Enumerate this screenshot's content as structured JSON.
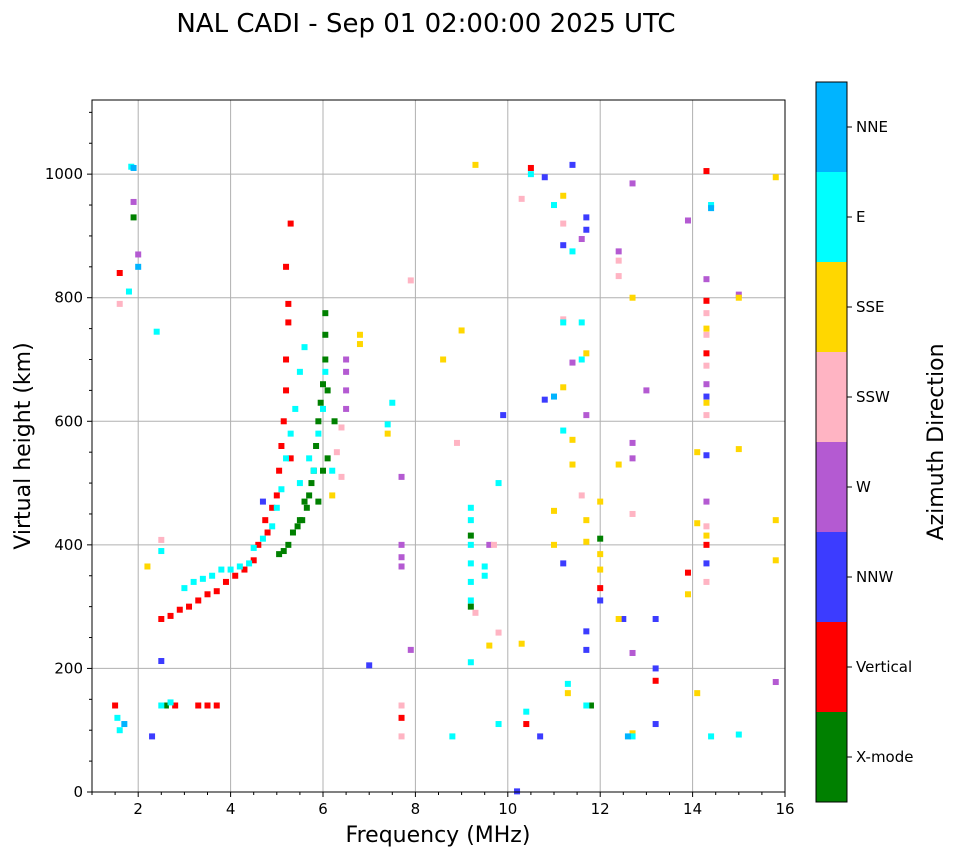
{
  "chart_data": {
    "type": "scatter",
    "title": "NAL CADI - Sep 01 02:00:00 2025 UTC",
    "xlabel": "Frequency (MHz)",
    "ylabel": "Virtual height (km)",
    "xlim": [
      1,
      16
    ],
    "ylim": [
      0,
      1120
    ],
    "xticks": [
      2,
      4,
      6,
      8,
      10,
      12,
      14,
      16
    ],
    "yticks": [
      0,
      200,
      400,
      600,
      800,
      1000
    ],
    "grid": true,
    "colorbar": {
      "label": "Azimuth Direction",
      "categories": [
        "X-mode",
        "Vertical",
        "NNW",
        "W",
        "SSW",
        "SSE",
        "E",
        "NNE"
      ],
      "colors": [
        "#008000",
        "#ff0000",
        "#3c3cff",
        "#b45ad2",
        "#ffb4c3",
        "#ffd700",
        "#00ffff",
        "#00b4ff"
      ]
    },
    "series": [
      {
        "name": "X-mode",
        "points": [
          [
            5.05,
            385
          ],
          [
            5.15,
            390
          ],
          [
            5.25,
            400
          ],
          [
            5.45,
            430
          ],
          [
            5.55,
            440
          ],
          [
            5.6,
            470
          ],
          [
            5.7,
            480
          ],
          [
            5.75,
            500
          ],
          [
            5.8,
            520
          ],
          [
            5.85,
            560
          ],
          [
            5.9,
            600
          ],
          [
            5.95,
            630
          ],
          [
            6.0,
            660
          ],
          [
            6.05,
            700
          ],
          [
            6.05,
            740
          ],
          [
            6.05,
            775
          ],
          [
            5.5,
            440
          ],
          [
            5.65,
            460
          ],
          [
            6.0,
            520
          ],
          [
            6.1,
            540
          ],
          [
            6.25,
            600
          ],
          [
            2.6,
            140
          ],
          [
            9.2,
            415
          ],
          [
            9.2,
            300
          ],
          [
            11.8,
            140
          ],
          [
            12.0,
            410
          ],
          [
            5.35,
            420
          ],
          [
            5.9,
            470
          ],
          [
            6.1,
            650
          ],
          [
            1.9,
            930
          ]
        ]
      },
      {
        "name": "Vertical",
        "points": [
          [
            1.5,
            140
          ],
          [
            2.8,
            140
          ],
          [
            3.3,
            140
          ],
          [
            3.5,
            140
          ],
          [
            3.7,
            140
          ],
          [
            2.5,
            280
          ],
          [
            2.7,
            285
          ],
          [
            2.9,
            295
          ],
          [
            3.1,
            300
          ],
          [
            3.3,
            310
          ],
          [
            3.5,
            320
          ],
          [
            3.7,
            325
          ],
          [
            3.9,
            340
          ],
          [
            4.1,
            350
          ],
          [
            4.3,
            360
          ],
          [
            4.5,
            375
          ],
          [
            4.6,
            400
          ],
          [
            4.8,
            420
          ],
          [
            4.9,
            460
          ],
          [
            5.0,
            480
          ],
          [
            5.05,
            520
          ],
          [
            5.1,
            560
          ],
          [
            5.15,
            600
          ],
          [
            5.2,
            650
          ],
          [
            5.2,
            700
          ],
          [
            5.25,
            760
          ],
          [
            5.25,
            790
          ],
          [
            5.3,
            920
          ],
          [
            5.2,
            850
          ],
          [
            4.75,
            440
          ],
          [
            5.3,
            540
          ],
          [
            10.5,
            1010
          ],
          [
            13.2,
            180
          ],
          [
            13.9,
            355
          ],
          [
            14.3,
            1005
          ],
          [
            14.3,
            795
          ],
          [
            14.3,
            710
          ],
          [
            14.3,
            400
          ],
          [
            10.4,
            110
          ],
          [
            12.0,
            330
          ],
          [
            7.7,
            120
          ],
          [
            1.6,
            840
          ]
        ]
      },
      {
        "name": "NNW",
        "points": [
          [
            2.3,
            90
          ],
          [
            10.7,
            90
          ],
          [
            13.2,
            280
          ],
          [
            13.2,
            200
          ],
          [
            13.2,
            110
          ],
          [
            12.5,
            280
          ],
          [
            11.2,
            370
          ],
          [
            11.7,
            260
          ],
          [
            11.7,
            230
          ],
          [
            14.3,
            640
          ],
          [
            14.3,
            545
          ],
          [
            14.3,
            370
          ],
          [
            11.7,
            930
          ],
          [
            11.7,
            910
          ],
          [
            9.9,
            610
          ],
          [
            10.8,
            635
          ],
          [
            7.0,
            205
          ],
          [
            4.7,
            470
          ],
          [
            2.5,
            212
          ],
          [
            12.0,
            310
          ],
          [
            10.2,
            1
          ],
          [
            10.8,
            995
          ],
          [
            11.4,
            1015
          ],
          [
            11.2,
            885
          ]
        ]
      },
      {
        "name": "W",
        "points": [
          [
            6.5,
            700
          ],
          [
            6.5,
            680
          ],
          [
            6.5,
            650
          ],
          [
            6.5,
            620
          ],
          [
            7.7,
            510
          ],
          [
            7.7,
            400
          ],
          [
            7.7,
            380
          ],
          [
            7.7,
            365
          ],
          [
            12.7,
            565
          ],
          [
            12.7,
            540
          ],
          [
            12.7,
            225
          ],
          [
            12.4,
            875
          ],
          [
            12.7,
            985
          ],
          [
            13.0,
            650
          ],
          [
            13.9,
            925
          ],
          [
            14.3,
            830
          ],
          [
            14.3,
            660
          ],
          [
            14.3,
            470
          ],
          [
            15.8,
            178
          ],
          [
            15.0,
            805
          ],
          [
            11.4,
            695
          ],
          [
            11.6,
            895
          ],
          [
            7.9,
            230
          ],
          [
            9.6,
            400
          ],
          [
            11.7,
            610
          ],
          [
            1.9,
            955
          ],
          [
            2.0,
            870
          ]
        ]
      },
      {
        "name": "SSW",
        "points": [
          [
            6.3,
            550
          ],
          [
            6.4,
            510
          ],
          [
            6.4,
            590
          ],
          [
            7.7,
            90
          ],
          [
            7.7,
            140
          ],
          [
            9.7,
            400
          ],
          [
            12.4,
            860
          ],
          [
            12.4,
            835
          ],
          [
            12.7,
            450
          ],
          [
            11.2,
            920
          ],
          [
            11.2,
            765
          ],
          [
            11.6,
            480
          ],
          [
            8.9,
            565
          ],
          [
            9.8,
            258
          ],
          [
            9.3,
            290
          ],
          [
            14.3,
            775
          ],
          [
            14.3,
            740
          ],
          [
            14.3,
            690
          ],
          [
            14.3,
            610
          ],
          [
            14.3,
            430
          ],
          [
            2.5,
            408
          ],
          [
            7.9,
            828
          ],
          [
            10.3,
            960
          ],
          [
            14.3,
            340
          ],
          [
            1.6,
            790
          ]
        ]
      },
      {
        "name": "SSE",
        "points": [
          [
            6.8,
            740
          ],
          [
            6.8,
            725
          ],
          [
            6.2,
            480
          ],
          [
            7.4,
            580
          ],
          [
            8.6,
            700
          ],
          [
            9.3,
            1015
          ],
          [
            10.3,
            240
          ],
          [
            11.0,
            455
          ],
          [
            11.0,
            400
          ],
          [
            11.2,
            965
          ],
          [
            11.2,
            655
          ],
          [
            11.4,
            570
          ],
          [
            11.4,
            530
          ],
          [
            11.7,
            710
          ],
          [
            11.7,
            440
          ],
          [
            11.7,
            405
          ],
          [
            12.0,
            470
          ],
          [
            12.0,
            385
          ],
          [
            12.0,
            360
          ],
          [
            12.4,
            530
          ],
          [
            12.4,
            280
          ],
          [
            12.7,
            800
          ],
          [
            12.7,
            95
          ],
          [
            13.9,
            320
          ],
          [
            14.1,
            550
          ],
          [
            14.1,
            435
          ],
          [
            14.1,
            160
          ],
          [
            14.3,
            750
          ],
          [
            14.3,
            630
          ],
          [
            14.3,
            415
          ],
          [
            15.0,
            555
          ],
          [
            15.0,
            800
          ],
          [
            15.8,
            995
          ],
          [
            15.8,
            440
          ],
          [
            15.8,
            375
          ],
          [
            11.3,
            160
          ],
          [
            9.6,
            237
          ],
          [
            2.2,
            365
          ],
          [
            9.0,
            747
          ]
        ]
      },
      {
        "name": "E",
        "points": [
          [
            1.55,
            120
          ],
          [
            1.6,
            100
          ],
          [
            2.5,
            140
          ],
          [
            2.7,
            145
          ],
          [
            3.0,
            330
          ],
          [
            3.2,
            340
          ],
          [
            3.4,
            345
          ],
          [
            3.6,
            350
          ],
          [
            3.8,
            360
          ],
          [
            4.0,
            360
          ],
          [
            4.2,
            365
          ],
          [
            4.4,
            370
          ],
          [
            4.5,
            395
          ],
          [
            4.7,
            410
          ],
          [
            4.9,
            430
          ],
          [
            5.0,
            460
          ],
          [
            5.1,
            490
          ],
          [
            5.2,
            540
          ],
          [
            5.3,
            580
          ],
          [
            5.4,
            620
          ],
          [
            5.5,
            680
          ],
          [
            5.6,
            720
          ],
          [
            5.5,
            500
          ],
          [
            5.7,
            540
          ],
          [
            5.8,
            520
          ],
          [
            5.9,
            580
          ],
          [
            6.0,
            620
          ],
          [
            6.05,
            680
          ],
          [
            6.2,
            520
          ],
          [
            7.4,
            595
          ],
          [
            7.5,
            630
          ],
          [
            9.2,
            460
          ],
          [
            9.2,
            440
          ],
          [
            9.2,
            400
          ],
          [
            9.2,
            370
          ],
          [
            9.2,
            340
          ],
          [
            9.2,
            310
          ],
          [
            9.5,
            365
          ],
          [
            9.5,
            350
          ],
          [
            9.8,
            500
          ],
          [
            9.8,
            110
          ],
          [
            10.4,
            130
          ],
          [
            11.0,
            950
          ],
          [
            11.2,
            760
          ],
          [
            11.2,
            585
          ],
          [
            11.4,
            875
          ],
          [
            11.6,
            760
          ],
          [
            11.6,
            700
          ],
          [
            11.7,
            140
          ],
          [
            11.3,
            175
          ],
          [
            12.7,
            90
          ],
          [
            14.4,
            950
          ],
          [
            14.4,
            90
          ],
          [
            15.0,
            93
          ],
          [
            8.8,
            90
          ],
          [
            9.2,
            210
          ],
          [
            2.4,
            745
          ],
          [
            1.8,
            810
          ],
          [
            2.5,
            390
          ],
          [
            1.85,
            1012
          ],
          [
            10.5,
            1000
          ]
        ]
      },
      {
        "name": "NNE",
        "points": [
          [
            1.9,
            1010
          ],
          [
            11.0,
            640
          ],
          [
            14.4,
            945
          ],
          [
            2.0,
            850
          ],
          [
            1.7,
            110
          ],
          [
            12.6,
            90
          ]
        ]
      }
    ]
  }
}
